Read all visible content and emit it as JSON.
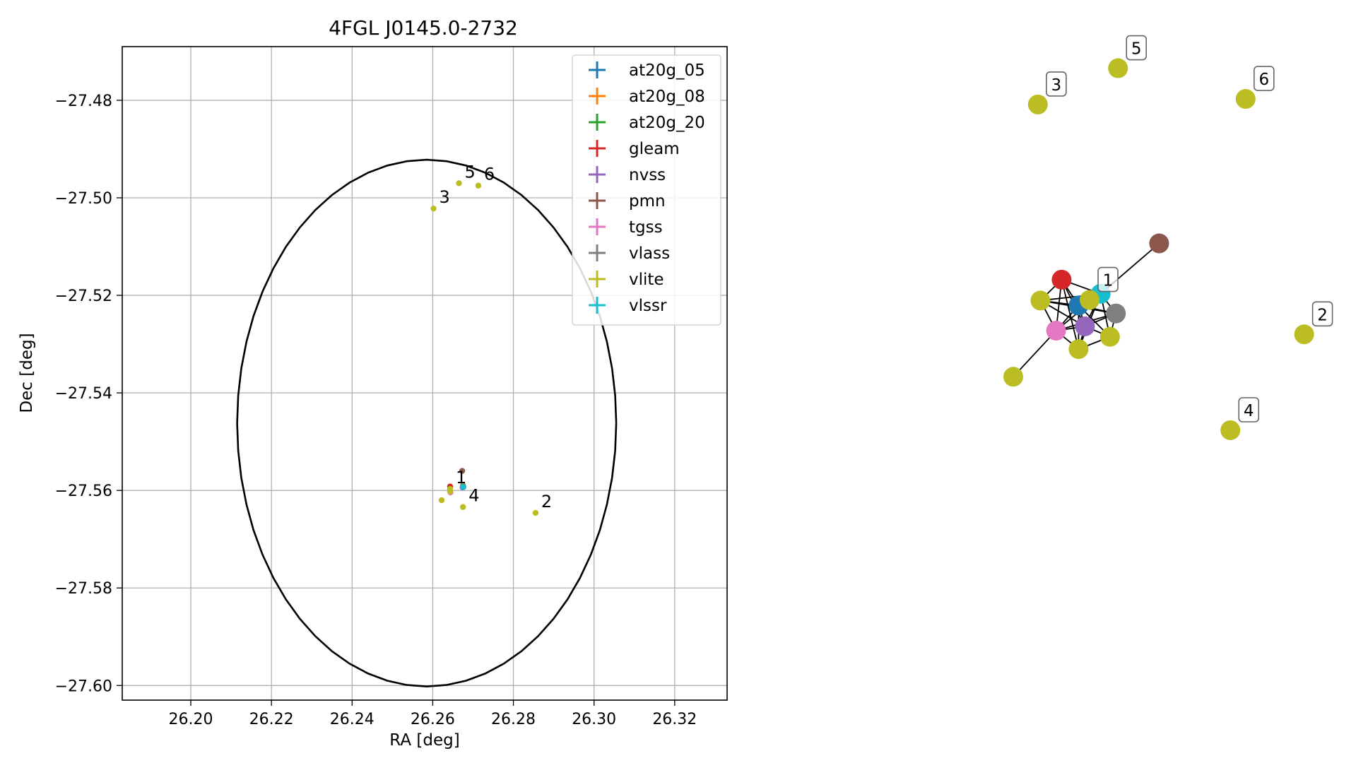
{
  "chart_data": [
    {
      "type": "scatter",
      "title": "4FGL J0145.0-2732",
      "xlabel": "RA [deg]",
      "ylabel": "Dec [deg]",
      "xlim": [
        26.183,
        26.333
      ],
      "ylim": [
        -27.603,
        -27.469
      ],
      "grid": true,
      "legend_position": "top-right",
      "xticks": [
        26.2,
        26.22,
        26.24,
        26.26,
        26.28,
        26.3,
        26.32
      ],
      "yticks": [
        -27.48,
        -27.5,
        -27.52,
        -27.54,
        -27.56,
        -27.58,
        -27.6
      ],
      "xtick_labels": [
        "26.20",
        "26.22",
        "26.24",
        "26.26",
        "26.28",
        "26.30",
        "26.32"
      ],
      "ytick_labels": [
        "−27.48",
        "−27.50",
        "−27.52",
        "−27.54",
        "−27.56",
        "−27.58",
        "−27.60"
      ],
      "ellipse": {
        "center": [
          26.2585,
          -27.5462
        ],
        "semi_axis_ra": 0.047,
        "semi_axis_dec": 0.054,
        "color": "#000000"
      },
      "series": [
        {
          "name": "at20g_05",
          "color": "#1f77b4",
          "points": [
            {
              "x": 26.2675,
              "y": -27.559
            }
          ]
        },
        {
          "name": "at20g_08",
          "color": "#ff7f0e",
          "points": [
            {
              "x": 26.2675,
              "y": -27.5591
            }
          ]
        },
        {
          "name": "at20g_20",
          "color": "#2ca02c",
          "points": [
            {
              "x": 26.2675,
              "y": -27.5592
            }
          ]
        },
        {
          "name": "gleam",
          "color": "#d62728",
          "points": [
            {
              "x": 26.2643,
              "y": -27.5592
            }
          ]
        },
        {
          "name": "nvss",
          "color": "#9467bd",
          "points": [
            {
              "x": 26.2674,
              "y": -27.5594
            }
          ]
        },
        {
          "name": "pmn",
          "color": "#8c564b",
          "points": [
            {
              "x": 26.2673,
              "y": -27.556
            }
          ]
        },
        {
          "name": "tgss",
          "color": "#e377c2",
          "points": [
            {
              "x": 26.2644,
              "y": -27.5604
            }
          ]
        },
        {
          "name": "vlass",
          "color": "#7f7f7f",
          "points": [
            {
              "x": 26.2676,
              "y": -27.5593
            }
          ]
        },
        {
          "name": "vlite",
          "color": "#bcbd22",
          "points": [
            {
              "x": 26.2643,
              "y": -27.5597,
              "label": "1"
            },
            {
              "x": 26.2855,
              "y": -27.5646,
              "label": "2"
            },
            {
              "x": 26.2602,
              "y": -27.5022,
              "label": "3"
            },
            {
              "x": 26.2675,
              "y": -27.5634,
              "label": "4"
            },
            {
              "x": 26.2665,
              "y": -27.497,
              "label": "5"
            },
            {
              "x": 26.2713,
              "y": -27.4975,
              "label": "6"
            },
            {
              "x": 26.2622,
              "y": -27.562
            },
            {
              "x": 26.2643,
              "y": -27.5602
            }
          ]
        },
        {
          "name": "vlssr",
          "color": "#17becf",
          "points": [
            {
              "x": 26.2675,
              "y": -27.5593
            }
          ]
        }
      ]
    },
    {
      "type": "network",
      "labels": [
        "1",
        "2",
        "3",
        "4",
        "5",
        "6"
      ],
      "nodes": [
        {
          "id": "at20g_05",
          "color": "#1f77b4",
          "x": 0.444,
          "y": 0.474
        },
        {
          "id": "gleam",
          "color": "#d62728",
          "x": 0.404,
          "y": 0.432
        },
        {
          "id": "nvss",
          "color": "#9467bd",
          "x": 0.459,
          "y": 0.508
        },
        {
          "id": "pmn",
          "color": "#8c564b",
          "x": 0.634,
          "y": 0.373
        },
        {
          "id": "tgss",
          "color": "#e377c2",
          "x": 0.391,
          "y": 0.515
        },
        {
          "id": "vlass",
          "color": "#7f7f7f",
          "x": 0.532,
          "y": 0.487
        },
        {
          "id": "vlssr",
          "color": "#17becf",
          "x": 0.496,
          "y": 0.455
        },
        {
          "id": "vlite_a",
          "color": "#bcbd22",
          "x": 0.354,
          "y": 0.466
        },
        {
          "id": "vlite_b",
          "color": "#bcbd22",
          "x": 0.444,
          "y": 0.545
        },
        {
          "id": "vlite_c",
          "color": "#bcbd22",
          "x": 0.518,
          "y": 0.525
        },
        {
          "id": "vlite_far",
          "color": "#bcbd22",
          "x": 0.29,
          "y": 0.59
        },
        {
          "id": "vlite_1",
          "color": "#bcbd22",
          "label": "1",
          "x": 0.47,
          "y": 0.465
        },
        {
          "id": "vlite_2",
          "color": "#bcbd22",
          "label": "2",
          "x": 0.976,
          "y": 0.521
        },
        {
          "id": "vlite_3",
          "color": "#bcbd22",
          "label": "3",
          "x": 0.348,
          "y": 0.147
        },
        {
          "id": "vlite_4",
          "color": "#bcbd22",
          "label": "4",
          "x": 0.802,
          "y": 0.677
        },
        {
          "id": "vlite_5",
          "color": "#bcbd22",
          "label": "5",
          "x": 0.537,
          "y": 0.088
        },
        {
          "id": "vlite_6",
          "color": "#bcbd22",
          "label": "6",
          "x": 0.838,
          "y": 0.138
        }
      ],
      "edges": [
        [
          "pmn",
          "vlssr"
        ],
        [
          "vlssr",
          "at20g_05"
        ],
        [
          "vlssr",
          "tgss"
        ],
        [
          "vlssr",
          "vlite_a"
        ],
        [
          "vlssr",
          "nvss"
        ],
        [
          "vlssr",
          "vlass"
        ],
        [
          "vlssr",
          "vlite_c"
        ],
        [
          "vlssr",
          "vlite_b"
        ],
        [
          "vlssr",
          "gleam"
        ],
        [
          "at20g_05",
          "gleam"
        ],
        [
          "at20g_05",
          "vlite_a"
        ],
        [
          "at20g_05",
          "tgss"
        ],
        [
          "at20g_05",
          "nvss"
        ],
        [
          "at20g_05",
          "vlass"
        ],
        [
          "at20g_05",
          "vlite_b"
        ],
        [
          "at20g_05",
          "vlite_c"
        ],
        [
          "gleam",
          "vlite_a"
        ],
        [
          "gleam",
          "tgss"
        ],
        [
          "gleam",
          "nvss"
        ],
        [
          "gleam",
          "vlite_b"
        ],
        [
          "vlite_a",
          "tgss"
        ],
        [
          "vlite_a",
          "nvss"
        ],
        [
          "vlite_a",
          "vlass"
        ],
        [
          "tgss",
          "nvss"
        ],
        [
          "tgss",
          "vlite_b"
        ],
        [
          "tgss",
          "vlite_far"
        ],
        [
          "tgss",
          "vlass"
        ],
        [
          "nvss",
          "vlass"
        ],
        [
          "nvss",
          "vlite_b"
        ],
        [
          "nvss",
          "vlite_c"
        ],
        [
          "vlass",
          "vlite_c"
        ],
        [
          "vlite_b",
          "vlite_c"
        ]
      ]
    }
  ]
}
